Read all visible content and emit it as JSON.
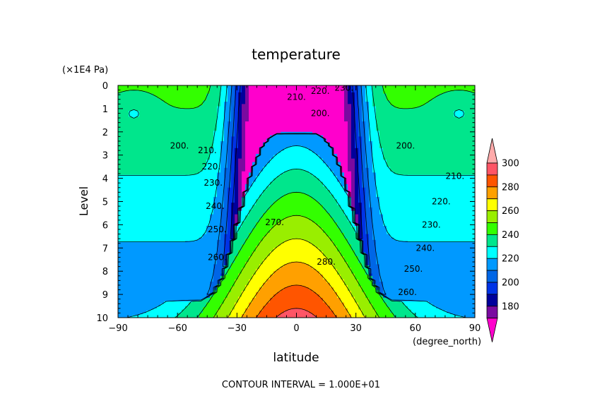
{
  "chart_data": {
    "type": "heatmap",
    "title": "temperature",
    "xlabel": "latitude",
    "ylabel": "Level",
    "x_units": "(degree_north)",
    "y_units": "(×1E4 Pa)",
    "footer": "CONTOUR INTERVAL = 1.000E+01",
    "xlim": [
      -90,
      90
    ],
    "ylim": [
      0,
      10
    ],
    "y_reversed": true,
    "x_ticks": [
      "−90",
      "−60",
      "−30",
      "0",
      "30",
      "60",
      "90"
    ],
    "y_ticks": [
      "0",
      "1",
      "2",
      "3",
      "4",
      "5",
      "6",
      "7",
      "8",
      "9",
      "10"
    ],
    "contour_levels": [
      190,
      200,
      210,
      220,
      230,
      240,
      250,
      260,
      270,
      280,
      290
    ],
    "colorbar": {
      "labels": [
        "180",
        "200",
        "220",
        "240",
        "260",
        "280",
        "300"
      ],
      "colors": [
        "#ff00cc",
        "#7a0aa0",
        "#00009b",
        "#0033e6",
        "#0066e6",
        "#0099ff",
        "#00ffff",
        "#00e68c",
        "#33ff00",
        "#99ee00",
        "#ffff00",
        "#ffa000",
        "#ff5500",
        "#ff5566",
        "#ffaaaa"
      ]
    },
    "contour_labels": [
      {
        "text": "210.",
        "lat": 0,
        "level": 0.5
      },
      {
        "text": "220.",
        "lat": 12,
        "level": 0.25
      },
      {
        "text": "230.",
        "lat": 24,
        "level": 0.1
      },
      {
        "text": "200.",
        "lat": 12,
        "level": 1.2
      },
      {
        "text": "200.",
        "lat": -59,
        "level": 2.6
      },
      {
        "text": "210.",
        "lat": -45,
        "level": 2.8
      },
      {
        "text": "220.",
        "lat": -43,
        "level": 3.5
      },
      {
        "text": "230.",
        "lat": -42,
        "level": 4.2
      },
      {
        "text": "240.",
        "lat": -41,
        "level": 5.2
      },
      {
        "text": "250.",
        "lat": -40,
        "level": 6.2
      },
      {
        "text": "260.",
        "lat": -40,
        "level": 7.4
      },
      {
        "text": "270.",
        "lat": -11,
        "level": 5.9
      },
      {
        "text": "280.",
        "lat": 15,
        "level": 7.6
      },
      {
        "text": "200.",
        "lat": 55,
        "level": 2.6
      },
      {
        "text": "210.",
        "lat": 80,
        "level": 3.9
      },
      {
        "text": "220.",
        "lat": 73,
        "level": 5.0
      },
      {
        "text": "230.",
        "lat": 68,
        "level": 6.0
      },
      {
        "text": "240.",
        "lat": 65,
        "level": 7.0
      },
      {
        "text": "250.",
        "lat": 59,
        "level": 7.9
      },
      {
        "text": "260.",
        "lat": 56,
        "level": 8.9
      }
    ]
  }
}
